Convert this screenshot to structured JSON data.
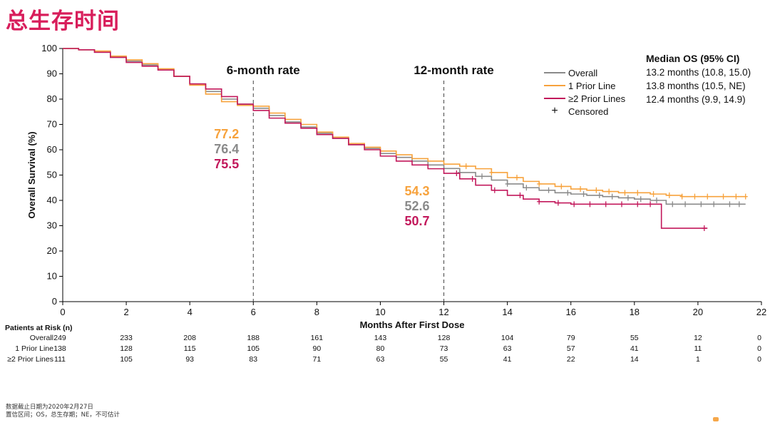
{
  "page": {
    "title": "总生存时间",
    "footnotes": [
      "数据截止日期为2020年2月27日",
      "置信区间；OS，总生存期；NE，不可估计"
    ]
  },
  "colors": {
    "title": "#d81e5b",
    "overall": "#8a8a8a",
    "one_prior": "#f7a23c",
    "two_prior": "#c2185b"
  },
  "legend": {
    "items": [
      {
        "label": "Overall",
        "color": "#8a8a8a"
      },
      {
        "label": "1 Prior Line",
        "color": "#f7a23c"
      },
      {
        "label": "≥2 Prior Lines",
        "color": "#c2185b"
      },
      {
        "label": "Censored",
        "icon": "plus-icon"
      }
    ]
  },
  "median": {
    "title": "Median OS (95% CI)",
    "rows": [
      "13.2 months (10.8, 15.0)",
      "13.8 months (10.5, NE)",
      "12.4 months (9.9, 14.9)"
    ]
  },
  "risk_table": {
    "title": "Patients at Risk (n)",
    "times": [
      0,
      2,
      4,
      6,
      8,
      10,
      12,
      14,
      16,
      18,
      20,
      22
    ],
    "rows": [
      {
        "label": "Overall",
        "values": [
          249,
          233,
          208,
          188,
          161,
          143,
          128,
          104,
          79,
          55,
          12,
          0
        ]
      },
      {
        "label": "1 Prior Line",
        "values": [
          138,
          128,
          115,
          105,
          90,
          80,
          73,
          63,
          57,
          41,
          11,
          0
        ]
      },
      {
        "label": "≥2 Prior Lines",
        "values": [
          111,
          105,
          93,
          83,
          71,
          63,
          55,
          41,
          22,
          14,
          1,
          0
        ]
      }
    ]
  },
  "chart_data": {
    "type": "line",
    "title": "",
    "xlabel": "Months After First Dose",
    "ylabel": "Overall Survival (%)",
    "xlim": [
      0,
      22
    ],
    "ylim": [
      0,
      100
    ],
    "xticks": [
      0,
      2,
      4,
      6,
      8,
      10,
      12,
      14,
      16,
      18,
      20,
      22
    ],
    "yticks": [
      0,
      10,
      20,
      30,
      40,
      50,
      60,
      70,
      80,
      90,
      100
    ],
    "grid": false,
    "legend_position": "top-right",
    "reference_lines": [
      {
        "x": 6,
        "label": "6-month rate"
      },
      {
        "x": 12,
        "label": "12-month rate"
      }
    ],
    "landmark_values": [
      {
        "x": 6,
        "values": [
          {
            "series": "1 Prior Line",
            "value": "77.2"
          },
          {
            "series": "Overall",
            "value": "76.4"
          },
          {
            "series": "≥2 Prior Lines",
            "value": "75.5"
          }
        ]
      },
      {
        "x": 12,
        "values": [
          {
            "series": "1 Prior Line",
            "value": "54.3"
          },
          {
            "series": "Overall",
            "value": "52.6"
          },
          {
            "series": "≥2 Prior Lines",
            "value": "50.7"
          }
        ]
      }
    ],
    "series": [
      {
        "name": "Overall",
        "color": "#8a8a8a",
        "x": [
          0,
          0.5,
          1,
          1.5,
          2,
          2.5,
          3,
          3.5,
          4,
          4.5,
          5,
          5.5,
          6,
          6.5,
          7,
          7.5,
          8,
          8.5,
          9,
          9.5,
          10,
          10.5,
          11,
          11.5,
          12,
          12.5,
          13,
          13.5,
          14,
          14.5,
          15,
          15.5,
          16,
          16.5,
          17,
          17.5,
          18,
          18.5,
          19,
          19.5,
          20,
          20.5,
          21,
          21.5
        ],
        "y": [
          100,
          99.5,
          98.5,
          96.5,
          95,
          93.5,
          91.5,
          89,
          86,
          83,
          80,
          78,
          76.4,
          73.5,
          71,
          69,
          66.5,
          64.5,
          62,
          60.5,
          58.5,
          57,
          55.5,
          54,
          52.6,
          51,
          49.5,
          48,
          46.5,
          45,
          44,
          43,
          42.5,
          42,
          41.5,
          41,
          40.5,
          40,
          38.5,
          38.5,
          38.5,
          38.5,
          38.5,
          38.5
        ],
        "censored_x": [
          12.5,
          13.2,
          14,
          14.6,
          15.3,
          15.9,
          16.4,
          16.9,
          17.3,
          17.8,
          18.2,
          18.7,
          19.2,
          19.6,
          20.1,
          20.5,
          21,
          21.3
        ]
      },
      {
        "name": "1 Prior Line",
        "color": "#f7a23c",
        "x": [
          0,
          0.5,
          1,
          1.5,
          2,
          2.5,
          3,
          3.5,
          4,
          4.5,
          5,
          5.5,
          6,
          6.5,
          7,
          7.5,
          8,
          8.5,
          9,
          9.5,
          10,
          10.5,
          11,
          11.5,
          12,
          12.5,
          13,
          13.5,
          14,
          14.5,
          15,
          15.5,
          16,
          16.5,
          17,
          17.5,
          18,
          18.5,
          19,
          19.5,
          20,
          20.5,
          21,
          21.5
        ],
        "y": [
          100,
          99.5,
          99,
          97,
          95.5,
          94,
          92,
          89,
          85.5,
          82,
          79,
          77.5,
          77.2,
          74.5,
          72,
          70,
          67,
          65,
          62.5,
          61,
          59.5,
          58,
          56.5,
          55.5,
          54.3,
          53.5,
          52.5,
          51,
          49,
          47.5,
          46.5,
          45.5,
          44.5,
          44,
          43.5,
          43,
          43,
          42.5,
          42,
          41.5,
          41.5,
          41.5,
          41.5,
          41.5
        ],
        "censored_x": [
          12.7,
          13.5,
          14.3,
          15,
          15.7,
          16.3,
          16.8,
          17.2,
          17.7,
          18.1,
          18.6,
          19.1,
          19.5,
          19.9,
          20.3,
          20.8,
          21.2,
          21.5
        ]
      },
      {
        "name": "≥2 Prior Lines",
        "color": "#c2185b",
        "x": [
          0,
          0.5,
          1,
          1.5,
          2,
          2.5,
          3,
          3.5,
          4,
          4.5,
          5,
          5.5,
          6,
          6.5,
          7,
          7.5,
          8,
          8.5,
          9,
          9.5,
          10,
          10.5,
          11,
          11.5,
          12,
          12.5,
          13,
          13.5,
          14,
          14.5,
          15,
          15.5,
          16,
          16.5,
          17,
          17.5,
          18,
          18.5,
          18.85,
          19.5,
          20,
          20.3
        ],
        "y": [
          100,
          99.5,
          98.5,
          96.5,
          94.5,
          93,
          91.5,
          89,
          86,
          84,
          81,
          78,
          75.5,
          72.5,
          70.5,
          68.5,
          66,
          64.5,
          62,
          60,
          57.5,
          55.5,
          54,
          52.5,
          50.7,
          48.5,
          46,
          44,
          42,
          40.5,
          39.5,
          39,
          38.5,
          38.5,
          38.5,
          38.5,
          38.5,
          38.5,
          29,
          29,
          29,
          29
        ],
        "censored_x": [
          12.4,
          12.9,
          13.6,
          14.4,
          15,
          15.6,
          16.1,
          16.6,
          17.1,
          17.6,
          18.1,
          18.5,
          20.2
        ]
      }
    ]
  }
}
